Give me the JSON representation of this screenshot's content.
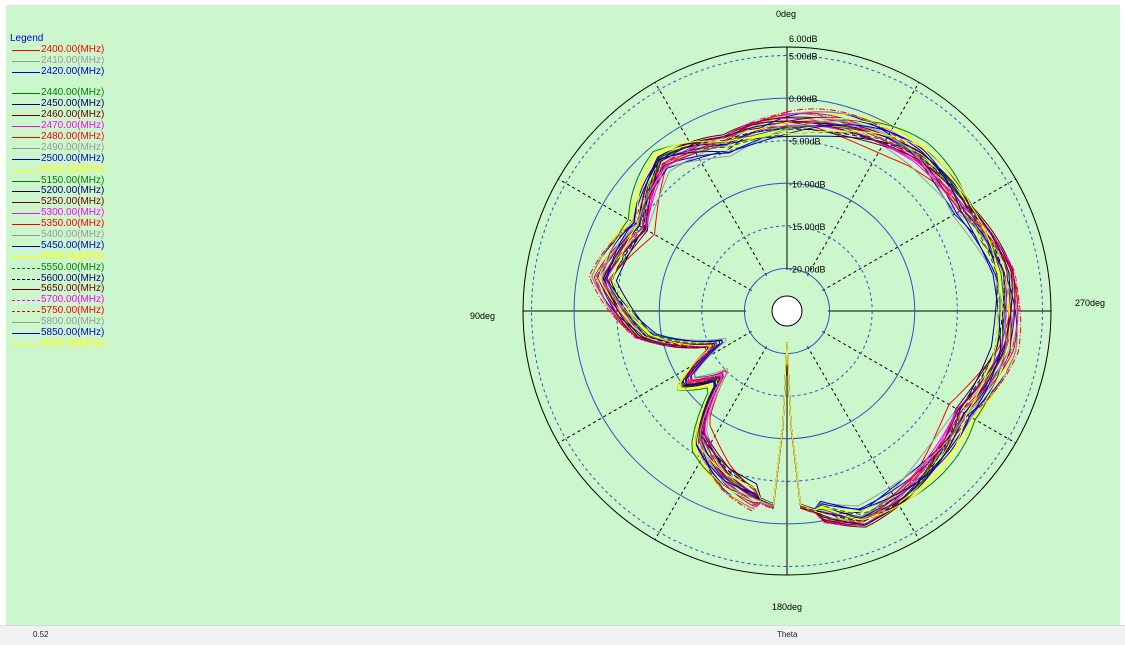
{
  "chart_data": {
    "type": "polar",
    "legend_title": "Legend",
    "legend_placement": "top-left",
    "angle_labels": {
      "top": "0deg",
      "left": "90deg",
      "right": "270deg",
      "bottom": "180deg"
    },
    "radial_labels": [
      "6.00dB",
      "5.00dB",
      "0.00dB",
      "-5.00dB",
      "-10.00dB",
      "-15.00dB",
      "-20.00dB"
    ],
    "radial_ticks_db": [
      5,
      0,
      -5,
      -10,
      -15,
      -20
    ],
    "radial_range_db": [
      -25,
      6
    ],
    "series": [
      {
        "name": "2400.00(MHz)",
        "color": "#ff0000",
        "dash": "solid"
      },
      {
        "name": "2410.00(MHz)",
        "color": "#999999",
        "dash": "solid"
      },
      {
        "name": "2420.00(MHz)",
        "color": "#0000cc",
        "dash": "solid"
      },
      {
        "name": "",
        "color": "#ffff00",
        "dash": "solid"
      },
      {
        "name": "2440.00(MHz)",
        "color": "#008000",
        "dash": "solid"
      },
      {
        "name": "2450.00(MHz)",
        "color": "#000066",
        "dash": "solid"
      },
      {
        "name": "2460.00(MHz)",
        "color": "#660000",
        "dash": "solid"
      },
      {
        "name": "2470.00(MHz)",
        "color": "#ff00ff",
        "dash": "solid"
      },
      {
        "name": "2480.00(MHz)",
        "color": "#ff0000",
        "dash": "solid"
      },
      {
        "name": "2490.00(MHz)",
        "color": "#999999",
        "dash": "solid"
      },
      {
        "name": "2500.00(MHz)",
        "color": "#0000cc",
        "dash": "solid"
      },
      {
        "name": "5100.00(MHz)",
        "color": "#ffff00",
        "dash": "solid"
      },
      {
        "name": "5150.00(MHz)",
        "color": "#008000",
        "dash": "solid"
      },
      {
        "name": "5200.00(MHz)",
        "color": "#000066",
        "dash": "solid"
      },
      {
        "name": "5250.00(MHz)",
        "color": "#660000",
        "dash": "solid"
      },
      {
        "name": "5300.00(MHz)",
        "color": "#ff00ff",
        "dash": "solid"
      },
      {
        "name": "5350.00(MHz)",
        "color": "#ff0000",
        "dash": "solid"
      },
      {
        "name": "5400.00(MHz)",
        "color": "#999999",
        "dash": "solid"
      },
      {
        "name": "5450.00(MHz)",
        "color": "#0000cc",
        "dash": "solid"
      },
      {
        "name": "5500.00(MHz)",
        "color": "#ffff00",
        "dash": "solid"
      },
      {
        "name": "5550.00(MHz)",
        "color": "#008000",
        "dash": "dashed"
      },
      {
        "name": "5600.00(MHz)",
        "color": "#000066",
        "dash": "dashed"
      },
      {
        "name": "5650.00(MHz)",
        "color": "#660000",
        "dash": "solid"
      },
      {
        "name": "5700.00(MHz)",
        "color": "#ff00ff",
        "dash": "dashdot"
      },
      {
        "name": "5750.00(MHz)",
        "color": "#ff0000",
        "dash": "dashdot"
      },
      {
        "name": "5800.00(MHz)",
        "color": "#999999",
        "dash": "solid"
      },
      {
        "name": "5850.00(MHz)",
        "color": "#0000cc",
        "dash": "solid"
      },
      {
        "name": "5900.00(MHz)",
        "color": "#ffff00",
        "dash": "solid"
      }
    ],
    "pattern_shape": {
      "note_deg_db": [
        [
          0,
          -3
        ],
        [
          20,
          -4
        ],
        [
          40,
          -2
        ],
        [
          60,
          -5
        ],
        [
          80,
          -3
        ],
        [
          100,
          -8
        ],
        [
          115,
          -16
        ],
        [
          125,
          -10
        ],
        [
          135,
          -14
        ],
        [
          145,
          -7
        ],
        [
          160,
          -4
        ],
        [
          176,
          -2
        ],
        [
          180,
          -21
        ],
        [
          184,
          -2
        ],
        [
          200,
          1
        ],
        [
          220,
          0
        ],
        [
          240,
          -1
        ],
        [
          260,
          1
        ],
        [
          280,
          1
        ],
        [
          300,
          -1
        ],
        [
          320,
          -1
        ],
        [
          340,
          -2
        ]
      ]
    }
  },
  "status": {
    "left": "0.52",
    "mid": "Theta"
  }
}
